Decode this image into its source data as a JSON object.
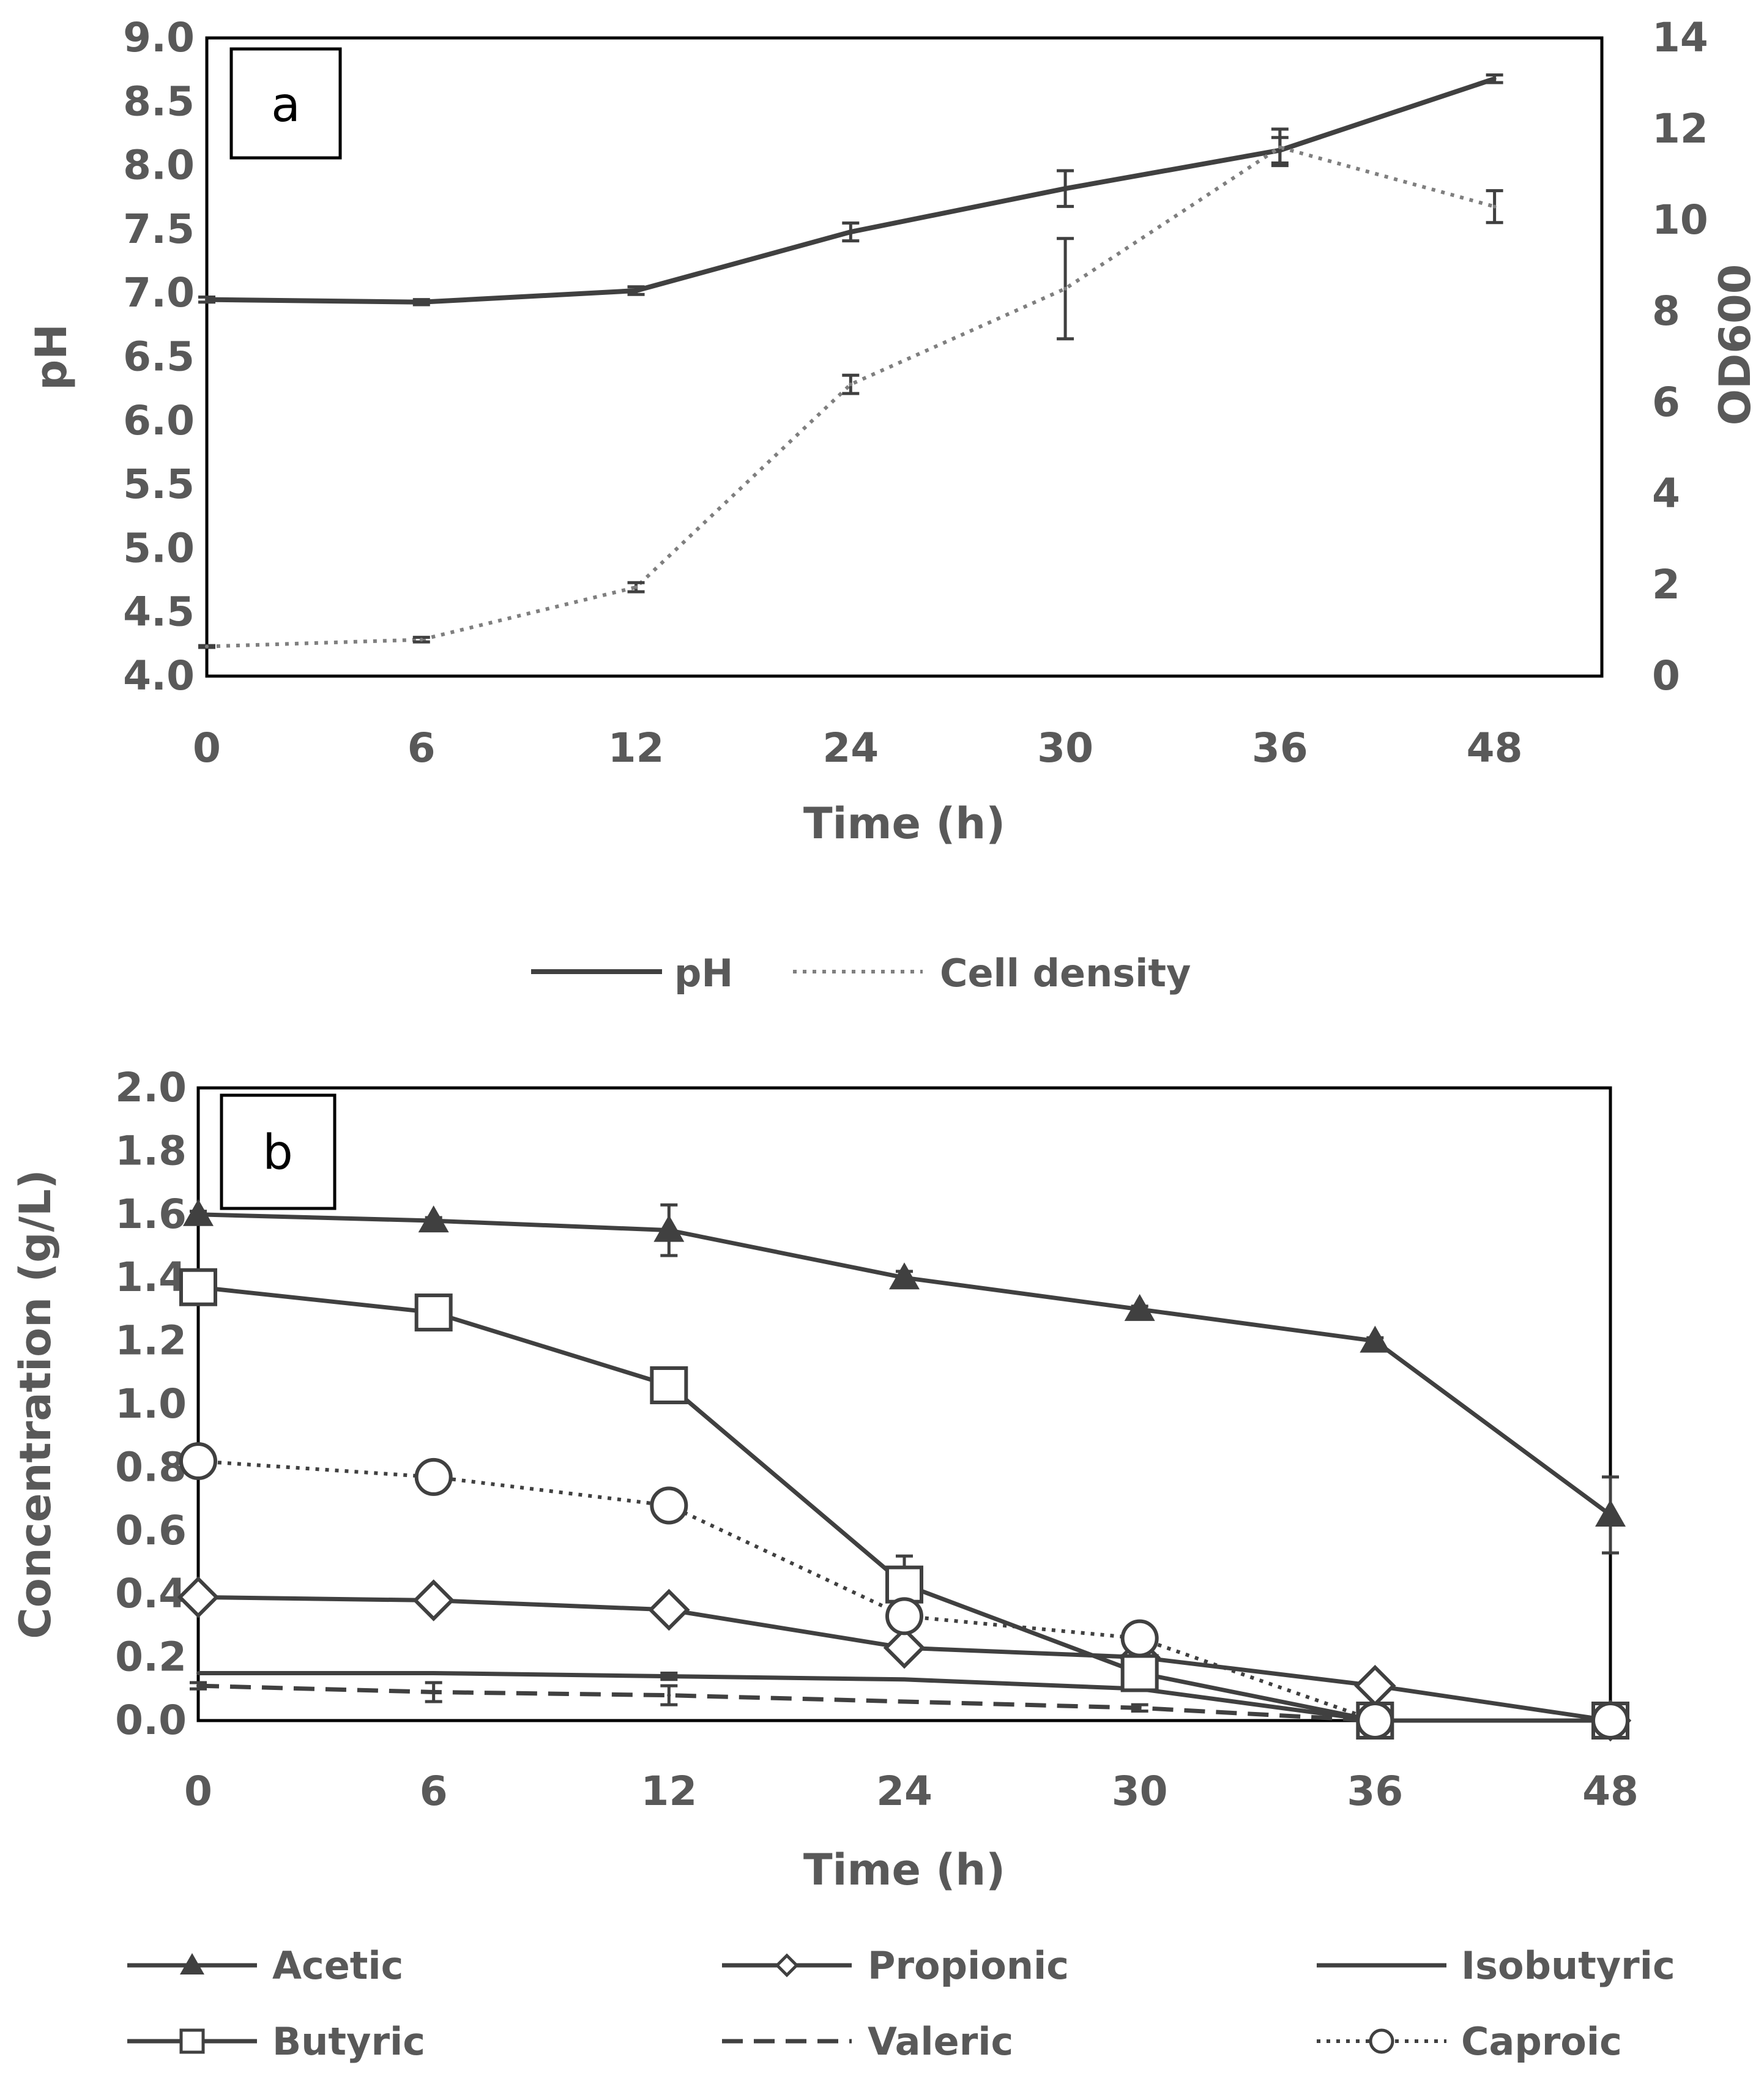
{
  "chart_data": [
    {
      "type": "line",
      "panel_label": "a",
      "x_labels": [
        "0",
        "6",
        "12",
        "24",
        "30",
        "36",
        "48"
      ],
      "xlabel": "Time (h)",
      "ylabel": "pH",
      "ylabel_right": "OD600",
      "ylim": [
        4.0,
        9.0
      ],
      "ylim_right": [
        0,
        14
      ],
      "yticks": [
        "4.0",
        "4.5",
        "5.0",
        "5.5",
        "6.0",
        "6.5",
        "7.0",
        "7.5",
        "8.0",
        "8.5",
        "9.0"
      ],
      "yticks_right": [
        "0",
        "2",
        "4",
        "6",
        "8",
        "10",
        "12",
        "14"
      ],
      "grid": false,
      "legend_position": "bottom",
      "series": [
        {
          "name": "pH",
          "axis": "left",
          "style": "solid",
          "color": "#404040",
          "values": [
            6.95,
            6.93,
            7.02,
            7.48,
            7.82,
            8.12,
            8.68
          ],
          "errors": [
            0.02,
            0.02,
            0.03,
            0.07,
            0.14,
            0.1,
            0.03
          ]
        },
        {
          "name": "Cell density",
          "axis": "right",
          "style": "dotted",
          "color": "#7f7f7f",
          "values": [
            0.65,
            0.8,
            1.95,
            6.4,
            8.5,
            11.6,
            10.3
          ],
          "errors": [
            0.02,
            0.05,
            0.1,
            0.2,
            1.1,
            0.4,
            0.35
          ]
        }
      ]
    },
    {
      "type": "line",
      "panel_label": "b",
      "x_labels": [
        "0",
        "6",
        "12",
        "24",
        "30",
        "36",
        "48"
      ],
      "xlabel": "Time (h)",
      "ylabel": "Concentration (g/L)",
      "ylim": [
        0,
        2.0
      ],
      "yticks": [
        "0.0",
        "0.2",
        "0.4",
        "0.6",
        "0.8",
        "1.0",
        "1.2",
        "1.4",
        "1.6",
        "1.8",
        "2.0"
      ],
      "grid": false,
      "legend_position": "bottom",
      "series": [
        {
          "name": "Acetic",
          "marker": "triangle-filled",
          "style": "solid",
          "color": "#404040",
          "values": [
            1.6,
            1.58,
            1.55,
            1.4,
            1.3,
            1.2,
            0.65
          ],
          "errors": [
            0.01,
            0.01,
            0.08,
            0.02,
            0.01,
            0.01,
            0.12
          ]
        },
        {
          "name": "Propionic",
          "marker": "diamond-open",
          "style": "solid",
          "color": "#404040",
          "values": [
            0.39,
            0.38,
            0.35,
            0.23,
            0.2,
            0.11,
            0.0
          ],
          "errors": [
            0.01,
            0.01,
            0.01,
            0.01,
            0.01,
            0.01,
            0.0
          ]
        },
        {
          "name": "Isobutyric",
          "marker": "none",
          "style": "solid",
          "color": "#404040",
          "values": [
            0.15,
            0.15,
            0.14,
            0.13,
            0.1,
            0.0,
            0.0
          ],
          "errors": [
            0.0,
            0.0,
            0.01,
            0.0,
            0.0,
            0.0,
            0.0
          ]
        },
        {
          "name": "Butyric",
          "marker": "square-open",
          "style": "solid",
          "color": "#404040",
          "values": [
            1.37,
            1.29,
            1.06,
            0.43,
            0.15,
            0.0,
            0.0
          ],
          "errors": [
            0.01,
            0.01,
            0.05,
            0.09,
            0.02,
            0.0,
            0.0
          ]
        },
        {
          "name": "Valeric",
          "marker": "none",
          "style": "dashed",
          "color": "#404040",
          "values": [
            0.11,
            0.09,
            0.08,
            0.06,
            0.04,
            0.0,
            0.0
          ],
          "errors": [
            0.01,
            0.03,
            0.03,
            0.0,
            0.01,
            0.0,
            0.0
          ]
        },
        {
          "name": "Caproic",
          "marker": "circle-open",
          "style": "dotted",
          "color": "#404040",
          "values": [
            0.82,
            0.77,
            0.68,
            0.33,
            0.26,
            0.0,
            0.0
          ],
          "errors": [
            0.0,
            0.01,
            0.01,
            0.01,
            0.0,
            0.0,
            0.0
          ]
        }
      ]
    }
  ]
}
